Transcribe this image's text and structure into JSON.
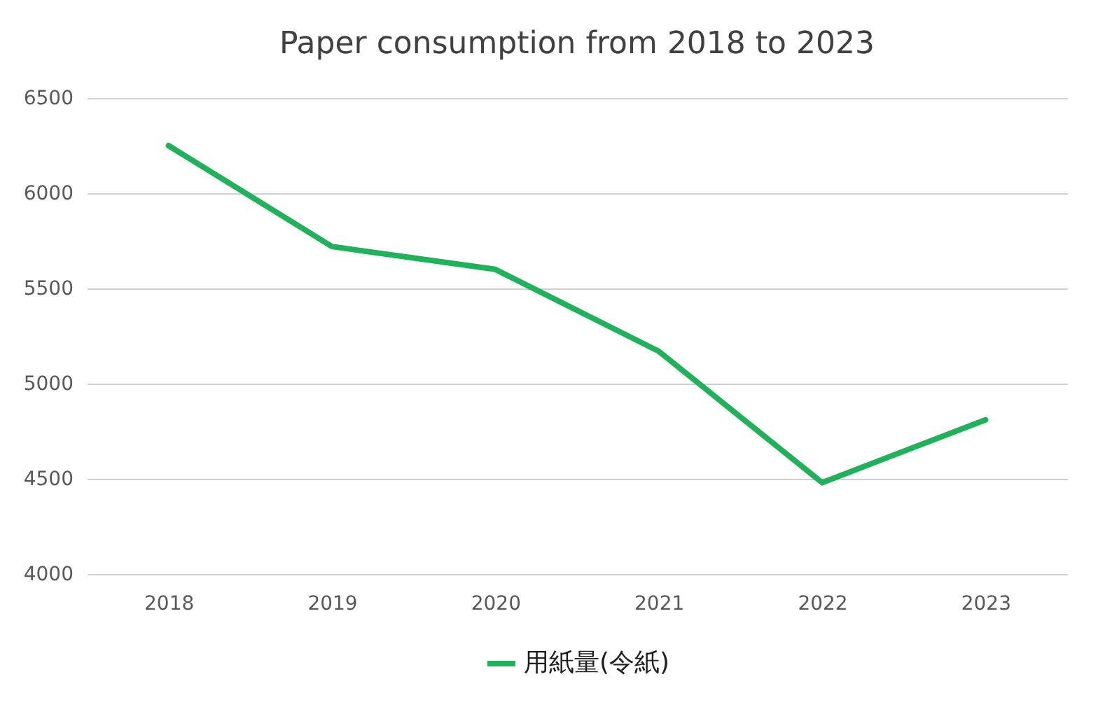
{
  "chart_data": {
    "type": "line",
    "title": "Paper consumption from 2018 to 2023",
    "categories": [
      "2018",
      "2019",
      "2020",
      "2021",
      "2022",
      "2023"
    ],
    "series": [
      {
        "name": "用紙量(令紙)",
        "color": "#1fb25a",
        "values": [
          6250,
          5720,
          5600,
          5170,
          4480,
          4810
        ]
      }
    ],
    "ylim": [
      4000,
      6500
    ],
    "yticks": [
      4000,
      4500,
      5000,
      5500,
      6000,
      6500
    ],
    "grid": "y",
    "legend": "bottom"
  }
}
